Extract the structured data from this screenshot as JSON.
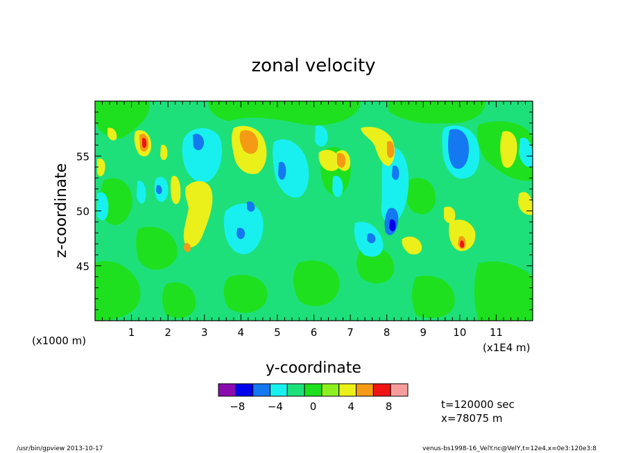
{
  "chart_data": {
    "type": "heatmap",
    "title": "zonal velocity",
    "xlabel": "y-coordinate",
    "ylabel": "z-coordinate",
    "x_scale_label": "(x1E4 m)",
    "y_scale_label": "(x1000 m)",
    "x_ticks": [
      "1",
      "2",
      "3",
      "4",
      "5",
      "6",
      "7",
      "8",
      "9",
      "10",
      "11"
    ],
    "y_ticks": [
      "45",
      "50",
      "55"
    ],
    "xlim": [
      0,
      12
    ],
    "ylim": [
      40,
      60
    ],
    "colorbar": {
      "levels": [
        -10,
        -8,
        -6,
        -4,
        -2,
        0,
        2,
        4,
        6,
        8,
        10
      ],
      "colors": [
        "#8a0ab0",
        "#0000ee",
        "#1478f0",
        "#18f0f0",
        "#1ee07a",
        "#1ee01e",
        "#8cf01e",
        "#ecf01a",
        "#f59a14",
        "#f01414",
        "#f79c9c"
      ],
      "tick_labels": [
        "-8",
        "-4",
        "0",
        "4",
        "8"
      ]
    },
    "features": [
      {
        "y": 4.0,
        "z": 56.8,
        "value": 6
      },
      {
        "y": 1.35,
        "z": 56.2,
        "value": 7
      },
      {
        "y": 6.7,
        "z": 54.6,
        "value": 6
      },
      {
        "y": 8.15,
        "z": 55.6,
        "value": 6
      },
      {
        "y": 10.0,
        "z": 46.8,
        "value": 7
      },
      {
        "y": 10.0,
        "z": 56.0,
        "value": -7
      },
      {
        "y": 2.85,
        "z": 56.5,
        "value": -6
      },
      {
        "y": 8.2,
        "z": 48.7,
        "value": -8
      },
      {
        "y": 4.05,
        "z": 50.6,
        "value": -6
      },
      {
        "y": 4.0,
        "z": 48.2,
        "value": -5
      },
      {
        "y": 5.15,
        "z": 53.8,
        "value": -5
      },
      {
        "y": 8.0,
        "z": 53.5,
        "value": -5
      }
    ]
  },
  "annotations": {
    "time": "t=120000 sec",
    "xpos": "x=78075 m"
  },
  "footer": {
    "left": "/usr/bin/gpview  2013-10-17",
    "right": "venus-bs1998-16_VelY.nc@VelY,t=12e4,x=0e3:120e3:8"
  }
}
